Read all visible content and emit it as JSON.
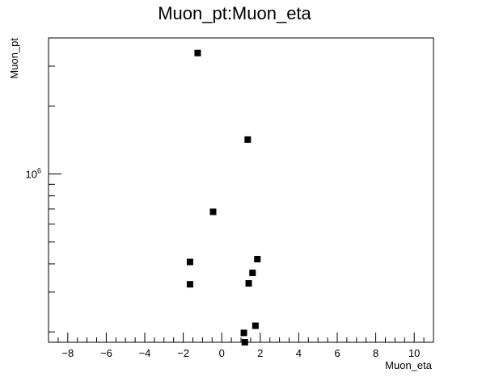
{
  "chart_data": {
    "type": "scatter",
    "title": "Muon_pt:Muon_eta",
    "xlabel": "Muon_eta",
    "ylabel": "Muon_pt",
    "xlim": [
      -9.0,
      11.0
    ],
    "y_log": true,
    "ylim": [
      180000,
      4000000
    ],
    "x_ticks": [
      -8,
      -6,
      -4,
      -2,
      0,
      2,
      4,
      6,
      8,
      10
    ],
    "y_major_tick": {
      "value": 1000000,
      "base": "10",
      "exponent": "6"
    },
    "y_minor_ticks": [
      200000,
      300000,
      400000,
      500000,
      600000,
      700000,
      800000,
      900000,
      2000000,
      3000000
    ],
    "marker": "square",
    "marker_color": "#000000",
    "points": [
      {
        "x": -1.25,
        "y": 3430000
      },
      {
        "x": 1.35,
        "y": 1420000
      },
      {
        "x": -0.45,
        "y": 680000
      },
      {
        "x": 1.85,
        "y": 420000
      },
      {
        "x": -1.65,
        "y": 408000
      },
      {
        "x": 1.6,
        "y": 365000
      },
      {
        "x": 1.4,
        "y": 328000
      },
      {
        "x": -1.65,
        "y": 325000
      },
      {
        "x": 1.75,
        "y": 213000
      },
      {
        "x": 1.15,
        "y": 198000
      },
      {
        "x": 1.2,
        "y": 180000
      }
    ]
  }
}
